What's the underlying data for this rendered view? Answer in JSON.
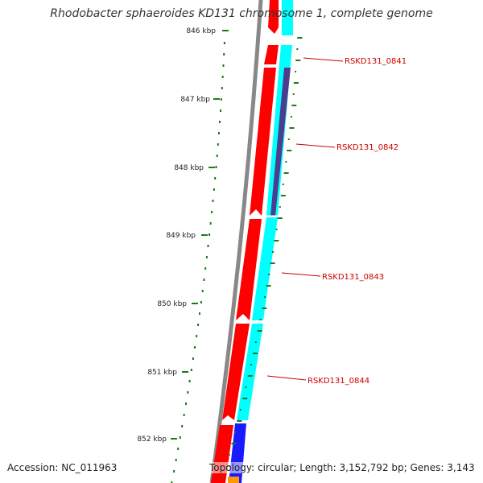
{
  "title": "Rhodobacter sphaeroides KD131 chromosome 1, complete genome",
  "accession_text": "Accession: NC_011963",
  "summary_text": "Topology: circular; Length: 3,152,792 bp; Genes: 3,143",
  "ruler": {
    "ticks": [
      "846 kbp",
      "847 kbp",
      "848 kbp",
      "849 kbp",
      "850 kbp",
      "851 kbp",
      "852 kbp"
    ]
  },
  "genes": [
    {
      "label": "RSKD131_0841"
    },
    {
      "label": "RSKD131_0842"
    },
    {
      "label": "RSKD131_0843"
    },
    {
      "label": "RSKD131_0844"
    }
  ],
  "colors": {
    "backbone": "#888888",
    "forward_cds": "#ff0000",
    "reverse_cds": "#00ffff",
    "purple_feature": "#4b3e8f",
    "blue_feature": "#1a1aff",
    "orange_feature": "#ff9900",
    "ruler": "#1a7a1a",
    "label": "#cc0000"
  }
}
